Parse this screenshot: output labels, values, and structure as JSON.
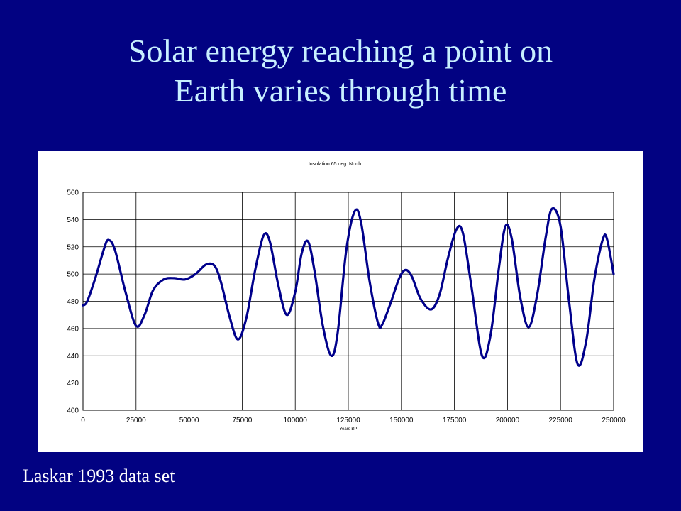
{
  "slide": {
    "title_line1": "Solar energy reaching a point on",
    "title_line2": "Earth varies through time",
    "footnote": "Laskar 1993 data set",
    "title_color": "#c8f0ff",
    "background_color": "#020282"
  },
  "chart_data": {
    "type": "line",
    "title": "Insolation 65 deg. North",
    "xlabel": "Years BP",
    "ylabel": "",
    "xlim": [
      0,
      250000
    ],
    "ylim": [
      400,
      560
    ],
    "xticks": [
      0,
      25000,
      50000,
      75000,
      100000,
      125000,
      150000,
      175000,
      200000,
      225000,
      250000
    ],
    "yticks": [
      400,
      420,
      440,
      460,
      480,
      500,
      520,
      540,
      560
    ],
    "grid": true,
    "legend": "none",
    "line_color": "#00008b",
    "series": [
      {
        "x": [
          0,
          2000,
          6000,
          10000,
          12000,
          15000,
          20000,
          25000,
          29000,
          33000,
          38000,
          43000,
          48000,
          53000,
          58000,
          62000,
          65000,
          69000,
          73000,
          77000,
          81000,
          85000,
          88000,
          92000,
          96000,
          100000,
          103000,
          106000,
          109000,
          113000,
          117000,
          120000,
          124000,
          128000,
          131000,
          135000,
          139000,
          141000,
          145000,
          149000,
          152000,
          155000,
          159000,
          164000,
          168000,
          172000,
          176000,
          179000,
          183000,
          188000,
          192000,
          196000,
          199000,
          202000,
          206000,
          210000,
          214000,
          218000,
          221000,
          225000,
          229000,
          233000,
          237000,
          241000,
          245000,
          247000,
          250000
        ],
        "y": [
          477,
          480,
          498,
          519,
          525,
          518,
          487,
          462,
          470,
          488,
          496,
          497,
          496,
          500,
          507,
          506,
          494,
          469,
          452,
          468,
          502,
          528,
          524,
          492,
          470,
          487,
          515,
          524,
          503,
          462,
          440,
          457,
          517,
          546,
          538,
          495,
          464,
          463,
          479,
          497,
          503,
          498,
          482,
          474,
          485,
          512,
          533,
          530,
          491,
          440,
          455,
          505,
          535,
          526,
          483,
          461,
          485,
          527,
          548,
          535,
          480,
          434,
          450,
          497,
          526,
          525,
          500
        ]
      }
    ]
  }
}
